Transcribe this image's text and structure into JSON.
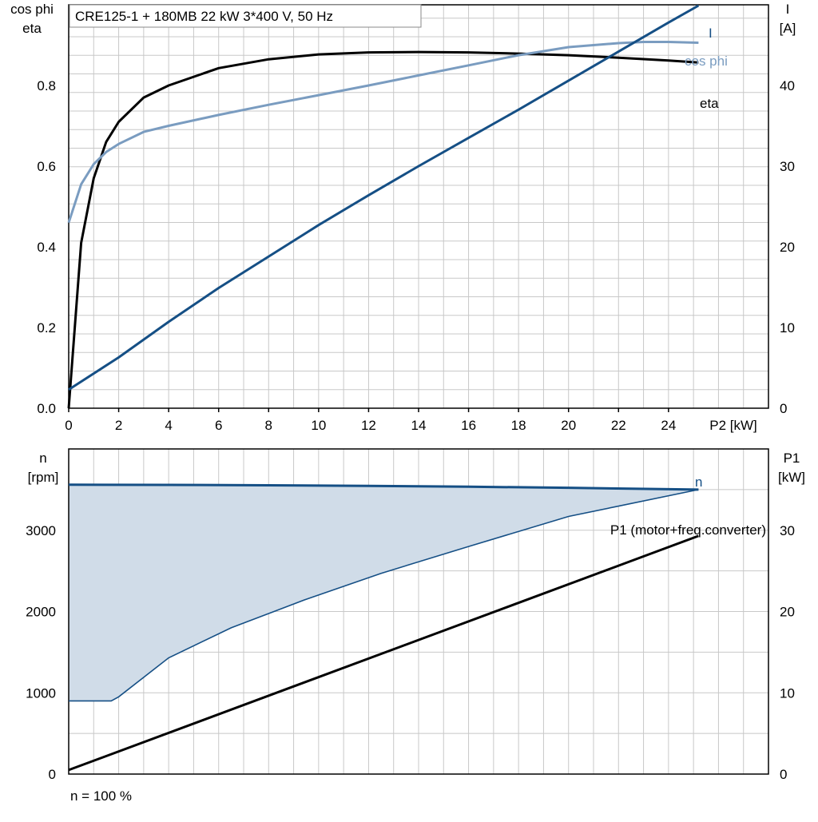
{
  "chart_data": [
    {
      "type": "line",
      "title": "CRE125-1 + 180MB   22 kW   3*400 V, 50 Hz",
      "left_axis_label_line1": "cos phi",
      "left_axis_label_line2": "eta",
      "right_axis_label_line1": "I",
      "right_axis_label_line2": "[A]",
      "xlabel": "P2 [kW]",
      "xlim": [
        0,
        28
      ],
      "ylim_left": [
        0,
        1.0
      ],
      "ylim_right": [
        0,
        50
      ],
      "x_ticks": [
        0,
        2,
        4,
        6,
        8,
        10,
        12,
        14,
        16,
        18,
        20,
        22,
        24
      ],
      "y_left_ticks": [
        0.0,
        0.2,
        0.4,
        0.6,
        0.8
      ],
      "y_left_tick_labels": [
        "0.0",
        "0.2",
        "0.4",
        "0.6",
        "0.8"
      ],
      "y_right_ticks": [
        0,
        10,
        20,
        30,
        40
      ],
      "grid": true,
      "series": [
        {
          "name": "eta",
          "axis": "left",
          "color": "#000000",
          "x": [
            0,
            0.5,
            1,
            1.5,
            2,
            3,
            4,
            6,
            8,
            10,
            12,
            14,
            16,
            18,
            20,
            22,
            24,
            25.2
          ],
          "y": [
            0.0,
            0.41,
            0.57,
            0.66,
            0.71,
            0.77,
            0.8,
            0.843,
            0.865,
            0.877,
            0.882,
            0.883,
            0.882,
            0.879,
            0.875,
            0.869,
            0.862,
            0.857
          ]
        },
        {
          "name": "cos phi",
          "axis": "left",
          "color": "#7a9cc0",
          "x": [
            0,
            0.5,
            1,
            1.5,
            2,
            3,
            4,
            6,
            8,
            10,
            12,
            14,
            16,
            18,
            20,
            22,
            23,
            24,
            25.2
          ],
          "y": [
            0.46,
            0.555,
            0.605,
            0.635,
            0.655,
            0.685,
            0.7,
            0.727,
            0.752,
            0.776,
            0.8,
            0.825,
            0.85,
            0.875,
            0.895,
            0.905,
            0.908,
            0.908,
            0.906
          ]
        },
        {
          "name": "I",
          "axis": "right",
          "color": "#154f85",
          "x": [
            0,
            2,
            4,
            6,
            8,
            10,
            12,
            14,
            16,
            18,
            20,
            22,
            24,
            25.2
          ],
          "y": [
            2.3,
            6.3,
            10.7,
            14.9,
            18.8,
            22.7,
            26.4,
            30.0,
            33.5,
            37.0,
            40.6,
            44.2,
            47.8,
            49.9
          ]
        }
      ]
    },
    {
      "type": "area",
      "left_axis_label_line1": "n",
      "left_axis_label_line2": "[rpm]",
      "right_axis_label_line1": "P1",
      "right_axis_label_line2": "[kW]",
      "footnote": "n = 100 %",
      "xlim": [
        0,
        28
      ],
      "ylim_left": [
        0,
        4000
      ],
      "ylim_right": [
        0,
        40
      ],
      "y_left_ticks": [
        0,
        1000,
        2000,
        3000
      ],
      "y_right_ticks": [
        0,
        10,
        20,
        30
      ],
      "grid": true,
      "series": [
        {
          "name": "n",
          "axis": "left",
          "color": "#154f85",
          "x": [
            0,
            4,
            8,
            12,
            16,
            20,
            24,
            25.2
          ],
          "y": [
            3560,
            3558,
            3553,
            3545,
            3535,
            3522,
            3505,
            3500
          ]
        },
        {
          "name": "",
          "axis": "left",
          "color": "#154f85",
          "x": [
            0,
            1.7,
            2,
            4,
            6.5,
            9.5,
            12.5,
            16,
            20,
            25.2
          ],
          "y": [
            900,
            900,
            950,
            1430,
            1800,
            2150,
            2470,
            2800,
            3170,
            3500
          ]
        },
        {
          "name": "P1 (motor+freq.converter)",
          "axis": "right",
          "color": "#000000",
          "x": [
            0,
            25.2
          ],
          "y": [
            0.5,
            29.3
          ]
        }
      ]
    }
  ]
}
